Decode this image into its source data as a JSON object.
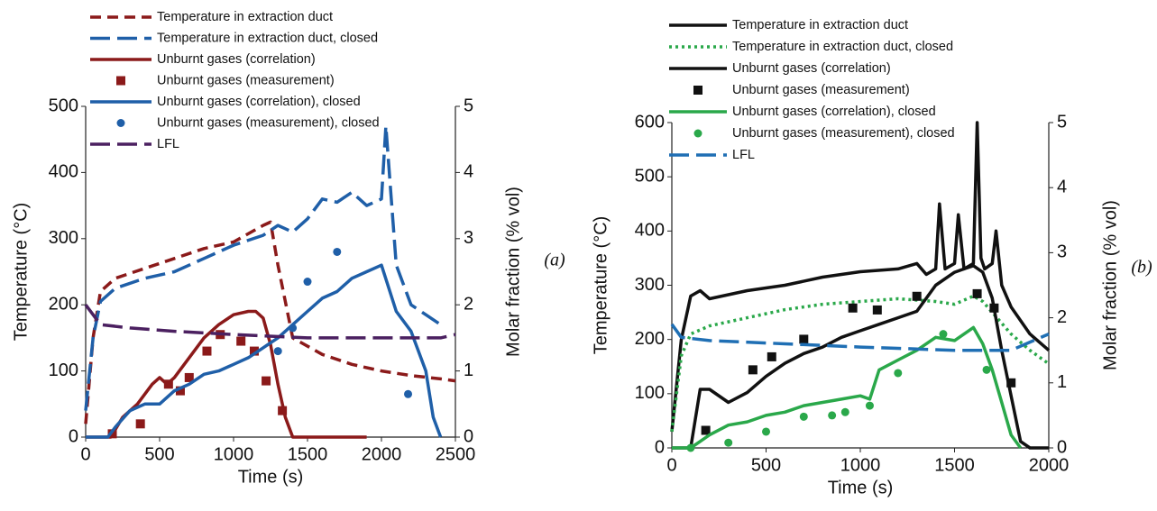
{
  "chart_data": [
    {
      "type": "line",
      "panel_label": "(a)",
      "x_label": "Time (s)",
      "y_label": "Temperature (°C)",
      "y2_label": "Molar fraction (% vol)",
      "xlim": [
        0,
        2500
      ],
      "xticks": [
        0,
        500,
        1000,
        1500,
        2000,
        2500
      ],
      "ylim": [
        0,
        500
      ],
      "yticks": [
        0,
        100,
        200,
        300,
        400,
        500
      ],
      "y2lim": [
        0,
        5
      ],
      "y2ticks": [
        0,
        1,
        2,
        3,
        4,
        5
      ],
      "series": [
        {
          "name": "Temperature in extraction duct",
          "color": "#8b1a1a",
          "style": "dashed",
          "axis": "y",
          "x": [
            0,
            50,
            100,
            200,
            400,
            600,
            800,
            1000,
            1200,
            1250,
            1300,
            1400,
            1600,
            1800,
            2000,
            2200,
            2400,
            2500
          ],
          "values": [
            20,
            150,
            220,
            240,
            255,
            270,
            285,
            295,
            320,
            325,
            260,
            150,
            125,
            110,
            100,
            93,
            88,
            85
          ]
        },
        {
          "name": "Temperature in extraction duct, closed",
          "color": "#1f5fa8",
          "style": "longdash",
          "axis": "y",
          "x": [
            0,
            50,
            100,
            200,
            400,
            600,
            800,
            1000,
            1200,
            1300,
            1400,
            1500,
            1600,
            1700,
            1800,
            1900,
            2000,
            2030,
            2060,
            2100,
            2200,
            2300,
            2400
          ],
          "values": [
            40,
            150,
            205,
            225,
            240,
            250,
            270,
            290,
            305,
            320,
            310,
            330,
            360,
            355,
            370,
            350,
            360,
            470,
            380,
            260,
            200,
            185,
            170
          ]
        },
        {
          "name": "Unburnt gases (correlation)",
          "color": "#8b1a1a",
          "style": "solid",
          "axis": "y2",
          "x": [
            0,
            170,
            250,
            350,
            450,
            500,
            550,
            600,
            700,
            800,
            900,
            1000,
            1100,
            1150,
            1200,
            1250,
            1300,
            1350,
            1400,
            1500,
            1900
          ],
          "values": [
            0,
            0,
            0.3,
            0.5,
            0.8,
            0.9,
            0.8,
            0.9,
            1.2,
            1.5,
            1.7,
            1.85,
            1.9,
            1.9,
            1.8,
            1.4,
            0.8,
            0.3,
            0,
            0,
            0
          ]
        },
        {
          "name": "Unburnt gases (measurement)",
          "color": "#8b1a1a",
          "marker": "square",
          "axis": "y2",
          "x": [
            180,
            370,
            560,
            640,
            700,
            820,
            910,
            1050,
            1140,
            1220,
            1330
          ],
          "values": [
            0.05,
            0.2,
            0.8,
            0.7,
            0.9,
            1.3,
            1.55,
            1.45,
            1.3,
            0.85,
            0.4
          ]
        },
        {
          "name": "Unburnt gases (correlation), closed",
          "color": "#1f5fa8",
          "style": "solid",
          "axis": "y2",
          "x": [
            0,
            150,
            200,
            300,
            400,
            500,
            600,
            700,
            800,
            900,
            1000,
            1100,
            1200,
            1300,
            1400,
            1500,
            1600,
            1700,
            1800,
            1900,
            2000,
            2100,
            2200,
            2300,
            2350,
            2400
          ],
          "values": [
            0,
            0,
            0.15,
            0.4,
            0.5,
            0.5,
            0.7,
            0.8,
            0.95,
            1.0,
            1.1,
            1.2,
            1.35,
            1.5,
            1.7,
            1.9,
            2.1,
            2.2,
            2.4,
            2.5,
            2.6,
            1.9,
            1.6,
            1.0,
            0.3,
            0
          ]
        },
        {
          "name": "Unburnt gases (measurement), closed",
          "color": "#1f5fa8",
          "marker": "circle",
          "axis": "y2",
          "x": [
            1300,
            1400,
            1500,
            1700,
            2180
          ],
          "values": [
            1.3,
            1.65,
            2.35,
            2.8,
            0.65
          ]
        },
        {
          "name": "LFL",
          "color": "#4b2060",
          "style": "longdash",
          "axis": "y2",
          "x": [
            0,
            100,
            300,
            600,
            1000,
            1500,
            2000,
            2400,
            2500
          ],
          "values": [
            2.0,
            1.7,
            1.65,
            1.6,
            1.55,
            1.5,
            1.5,
            1.5,
            1.55
          ]
        }
      ]
    },
    {
      "type": "line",
      "panel_label": "(b)",
      "x_label": "Time (s)",
      "y_label": "Temperature (°C)",
      "y2_label": "Molar fraction (% vol)",
      "xlim": [
        0,
        2000
      ],
      "xticks": [
        0,
        500,
        1000,
        1500,
        2000
      ],
      "ylim": [
        0,
        600
      ],
      "yticks": [
        0,
        100,
        200,
        300,
        400,
        500,
        600
      ],
      "y2lim": [
        0,
        5
      ],
      "y2ticks": [
        0,
        1,
        2,
        3,
        4,
        5
      ],
      "series": [
        {
          "name": "Temperature in extraction duct",
          "color": "#111111",
          "style": "solid",
          "axis": "y",
          "x": [
            0,
            50,
            100,
            150,
            200,
            400,
            600,
            800,
            1000,
            1200,
            1300,
            1350,
            1400,
            1420,
            1450,
            1500,
            1520,
            1550,
            1600,
            1620,
            1640,
            1660,
            1700,
            1720,
            1750,
            1800,
            1900,
            2000
          ],
          "values": [
            30,
            200,
            280,
            290,
            275,
            290,
            300,
            315,
            325,
            330,
            340,
            320,
            330,
            450,
            330,
            340,
            430,
            330,
            340,
            600,
            350,
            330,
            340,
            400,
            300,
            260,
            210,
            180
          ]
        },
        {
          "name": "Temperature in extraction duct, closed",
          "color": "#2aa84a",
          "style": "dotted",
          "axis": "y",
          "x": [
            0,
            50,
            100,
            200,
            400,
            600,
            800,
            1000,
            1200,
            1400,
            1500,
            1600,
            1650,
            1700,
            1800,
            1900,
            2000
          ],
          "values": [
            30,
            170,
            210,
            225,
            240,
            255,
            265,
            270,
            275,
            270,
            265,
            280,
            270,
            250,
            210,
            180,
            155
          ]
        },
        {
          "name": "Unburnt gases (correlation)",
          "color": "#111111",
          "style": "solid",
          "axis": "y2",
          "x": [
            0,
            100,
            150,
            200,
            300,
            400,
            500,
            600,
            700,
            800,
            900,
            1000,
            1100,
            1200,
            1300,
            1400,
            1500,
            1550,
            1600,
            1650,
            1700,
            1750,
            1800,
            1850,
            1900,
            2000
          ],
          "values": [
            0,
            0,
            0.9,
            0.9,
            0.7,
            0.85,
            1.1,
            1.3,
            1.45,
            1.55,
            1.7,
            1.8,
            1.9,
            2.0,
            2.1,
            2.5,
            2.7,
            2.75,
            2.8,
            2.7,
            2.3,
            1.5,
            0.8,
            0.1,
            0,
            0
          ]
        },
        {
          "name": "Unburnt gases (measurement)",
          "color": "#111111",
          "marker": "square",
          "axis": "y2",
          "x": [
            180,
            430,
            530,
            700,
            960,
            1090,
            1300,
            1620,
            1710,
            1800
          ],
          "values": [
            0.27,
            1.2,
            1.4,
            1.67,
            2.15,
            2.12,
            2.33,
            2.37,
            2.15,
            1.0
          ]
        },
        {
          "name": "Unburnt gases (correlation), closed",
          "color": "#2aa84a",
          "style": "solid",
          "axis": "y2",
          "x": [
            0,
            100,
            150,
            200,
            300,
            400,
            500,
            600,
            700,
            800,
            900,
            1000,
            1050,
            1100,
            1200,
            1300,
            1400,
            1500,
            1600,
            1650,
            1700,
            1750,
            1800,
            1850
          ],
          "values": [
            0,
            0,
            0.1,
            0.2,
            0.35,
            0.4,
            0.5,
            0.55,
            0.65,
            0.7,
            0.75,
            0.8,
            0.75,
            1.2,
            1.35,
            1.5,
            1.7,
            1.65,
            1.85,
            1.6,
            1.2,
            0.7,
            0.2,
            0
          ]
        },
        {
          "name": "Unburnt gases (measurement), closed",
          "color": "#2aa84a",
          "marker": "circle",
          "axis": "y2",
          "x": [
            100,
            300,
            500,
            700,
            850,
            920,
            1050,
            1200,
            1440,
            1670
          ],
          "values": [
            0,
            0.08,
            0.25,
            0.48,
            0.5,
            0.55,
            0.65,
            1.15,
            1.75,
            1.2
          ]
        },
        {
          "name": "LFL",
          "color": "#1f6fb4",
          "style": "longdash",
          "axis": "y2",
          "x": [
            0,
            50,
            200,
            600,
            1000,
            1500,
            1800,
            2000
          ],
          "values": [
            1.9,
            1.7,
            1.65,
            1.6,
            1.55,
            1.5,
            1.5,
            1.75
          ]
        }
      ]
    }
  ]
}
